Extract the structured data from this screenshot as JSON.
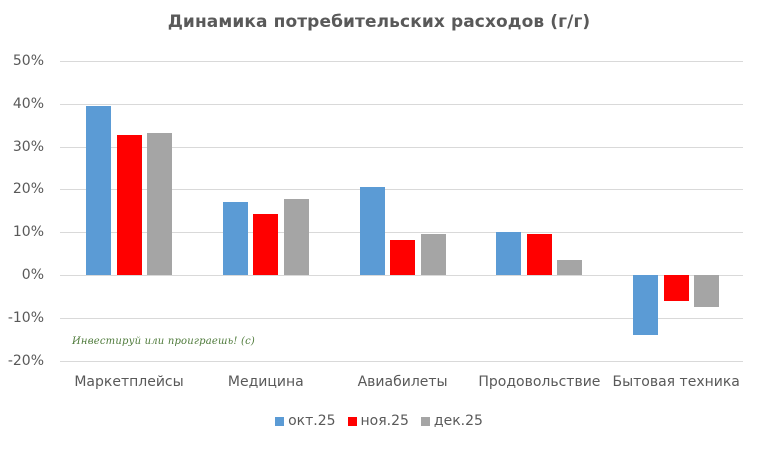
{
  "chart_data": {
    "type": "bar",
    "title": "Динамика потребительских расходов (г/г)",
    "xlabel": "",
    "ylabel": "",
    "ylim": [
      -20,
      50
    ],
    "yticks": [
      "50%",
      "40%",
      "30%",
      "20%",
      "10%",
      "0%",
      "-10%",
      "-20%"
    ],
    "ytick_values": [
      50,
      40,
      30,
      20,
      10,
      0,
      -10,
      -20
    ],
    "grid": true,
    "legend_position": "bottom",
    "categories": [
      "Маркетплейсы",
      "Медицина",
      "Авиабилеты",
      "Продовольствие",
      "Бытовая техника"
    ],
    "series": [
      {
        "name": "окт.25",
        "color": "#5b9bd5",
        "values": [
          39.5,
          17,
          20.5,
          10,
          -14
        ]
      },
      {
        "name": "ноя.25",
        "color": "#ff0000",
        "values": [
          32.7,
          14.3,
          8.2,
          9.5,
          -6
        ]
      },
      {
        "name": "дек.25",
        "color": "#a5a5a5",
        "values": [
          33.2,
          17.8,
          9.5,
          3.5,
          -7.5
        ]
      }
    ],
    "annotations": [
      "Инвестируй или проиграешь! (с)"
    ]
  },
  "watermark": "Инвестируй или проиграешь! (с)"
}
